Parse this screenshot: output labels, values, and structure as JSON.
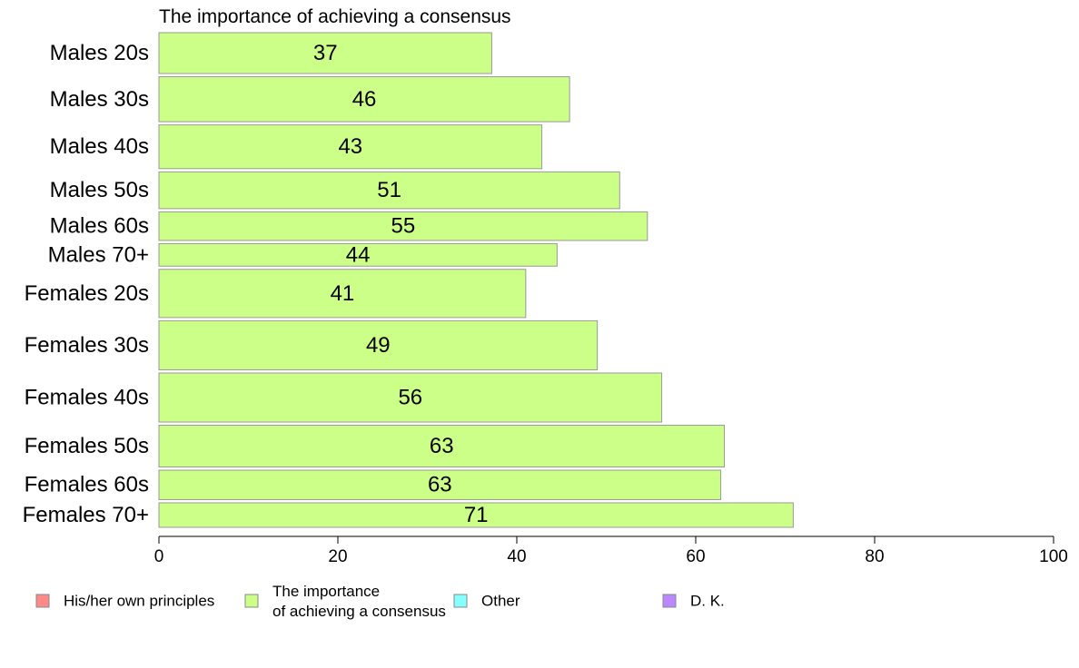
{
  "chart_data": {
    "type": "bar",
    "orientation": "horizontal",
    "title": "The importance of achieving a consensus",
    "xlabel": "",
    "ylabel": "",
    "xlim": [
      0,
      100
    ],
    "x_ticks": [
      0,
      20,
      40,
      60,
      80,
      100
    ],
    "grid": false,
    "categories": [
      "Males 20s",
      "Males 30s",
      "Males 40s",
      "Males 50s",
      "Males 60s",
      "Males 70+",
      "Females 20s",
      "Females 30s",
      "Females 40s",
      "Females 50s",
      "Females 60s",
      "Females 70+"
    ],
    "series": [
      {
        "name": "The importance of achieving a consensus",
        "color": "#ccff88",
        "values": [
          37.2,
          45.9,
          42.8,
          51.5,
          54.6,
          44.5,
          41.0,
          49.0,
          56.2,
          63.2,
          62.8,
          70.9
        ],
        "labels": [
          "37",
          "46",
          "43",
          "51",
          "55",
          "44",
          "41",
          "49",
          "56",
          "63",
          "63",
          "71"
        ],
        "relative_widths": [
          1.0,
          1.1,
          1.07,
          0.9,
          0.7,
          0.55,
          1.18,
          1.2,
          1.2,
          1.02,
          0.72,
          0.6
        ]
      }
    ],
    "legend": {
      "placement": "bottom",
      "items": [
        {
          "label": "His/her own principles",
          "color": "#ff8888"
        },
        {
          "label": "The importance of achieving a consensus",
          "color": "#ccff88"
        },
        {
          "label": "Other",
          "color": "#88ffff"
        },
        {
          "label": "D. K.",
          "color": "#bb88ff"
        }
      ]
    }
  }
}
